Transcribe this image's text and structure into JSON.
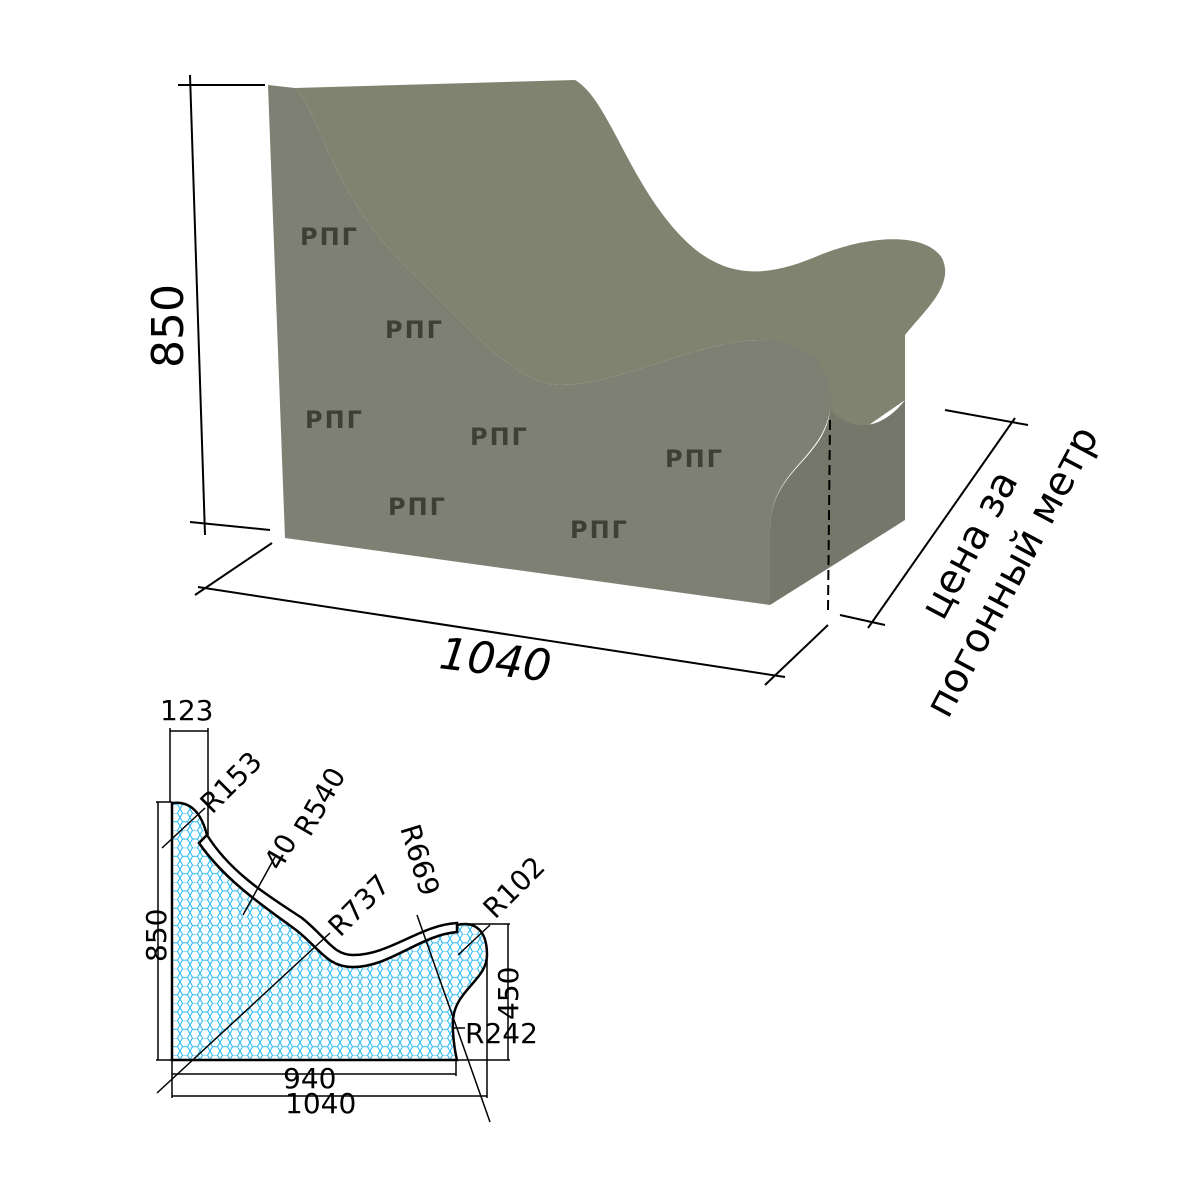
{
  "render": {
    "logo_text": "РПГ",
    "colors": {
      "foam": "#7f8274",
      "foam_dark": "#6b6e61",
      "section_fill": "#22b7f0"
    },
    "dimensions": {
      "height": "850",
      "width": "1040",
      "note_line1": "цена за",
      "note_line2": "погонный метр"
    }
  },
  "section": {
    "labels": {
      "d123": "123",
      "r153": "R153",
      "d40": "40",
      "r540": "R540",
      "r669": "R669",
      "r737": "R737",
      "r102": "R102",
      "d850": "850",
      "d450": "450",
      "r242": "R242",
      "d940": "940",
      "d1040": "1040"
    }
  }
}
